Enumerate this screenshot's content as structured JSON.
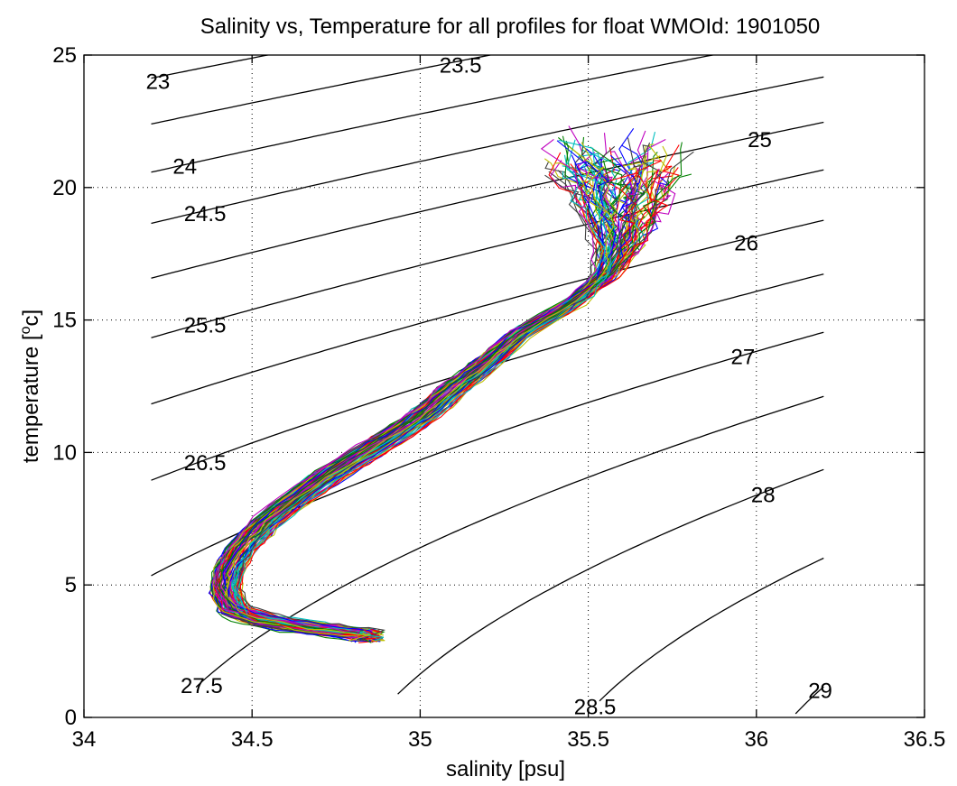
{
  "chart_data": {
    "type": "line",
    "title": "Salinity vs, Temperature for all profiles for float WMOId: 1901050",
    "xlabel": "salinity [psu]",
    "ylabel": "temperature [",
    "ylabel_super": "o",
    "ylabel_suffix": "c]",
    "xlim": [
      34,
      36.5
    ],
    "ylim": [
      0,
      25
    ],
    "xticks": [
      34,
      34.5,
      35,
      35.5,
      36,
      36.5
    ],
    "xtick_labels": [
      "34",
      "34.5",
      "35",
      "35.5",
      "36",
      "36.5"
    ],
    "yticks": [
      0,
      5,
      10,
      15,
      20,
      25
    ],
    "ytick_labels": [
      "0",
      "5",
      "10",
      "15",
      "20",
      "25"
    ],
    "grid": true,
    "density_contours": {
      "s_range": [
        34.2,
        36.2
      ],
      "levels": [
        {
          "sigma": 23,
          "label": "23",
          "label_at": [
            34.22,
            24.0
          ]
        },
        {
          "sigma": 23.5,
          "label": "23.5",
          "label_at": [
            35.12,
            24.6
          ]
        },
        {
          "sigma": 24,
          "label": "24",
          "label_at": [
            34.3,
            20.8
          ]
        },
        {
          "sigma": 24.5,
          "label": "24.5",
          "label_at": [
            34.36,
            19.0
          ]
        },
        {
          "sigma": 25,
          "label": "25",
          "label_at": [
            36.01,
            21.8
          ]
        },
        {
          "sigma": 25.5,
          "label": "25.5",
          "label_at": [
            34.36,
            14.8
          ]
        },
        {
          "sigma": 26,
          "label": "26",
          "label_at": [
            35.97,
            17.9
          ]
        },
        {
          "sigma": 26.5,
          "label": "26.5",
          "label_at": [
            34.36,
            9.6
          ]
        },
        {
          "sigma": 27,
          "label": "27",
          "label_at": [
            35.96,
            13.6
          ]
        },
        {
          "sigma": 27.5,
          "label": "27.5",
          "label_at": [
            34.35,
            1.2
          ]
        },
        {
          "sigma": 28,
          "label": "28",
          "label_at": [
            36.02,
            8.4
          ]
        },
        {
          "sigma": 28.5,
          "label": "28.5",
          "label_at": [
            35.52,
            0.4
          ]
        },
        {
          "sigma": 29,
          "label": "29",
          "label_at": [
            36.19,
            1.0
          ]
        }
      ]
    },
    "mean_profile": {
      "s": [
        34.85,
        34.7,
        34.55,
        34.45,
        34.42,
        34.43,
        34.47,
        34.55,
        34.7,
        34.85,
        35.0,
        35.1,
        35.2,
        35.3,
        35.45,
        35.55,
        35.6,
        35.62,
        35.6
      ],
      "t": [
        3.1,
        3.3,
        3.6,
        4.0,
        4.8,
        5.6,
        6.4,
        7.5,
        8.9,
        10.1,
        11.3,
        12.4,
        13.4,
        14.5,
        15.6,
        16.6,
        17.8,
        19.5,
        21.5
      ]
    },
    "profile_count": 90,
    "series_colors": [
      "#0000ff",
      "#008000",
      "#ff0000",
      "#00bfbf",
      "#bf00bf",
      "#bfbf00",
      "#404040"
    ]
  }
}
